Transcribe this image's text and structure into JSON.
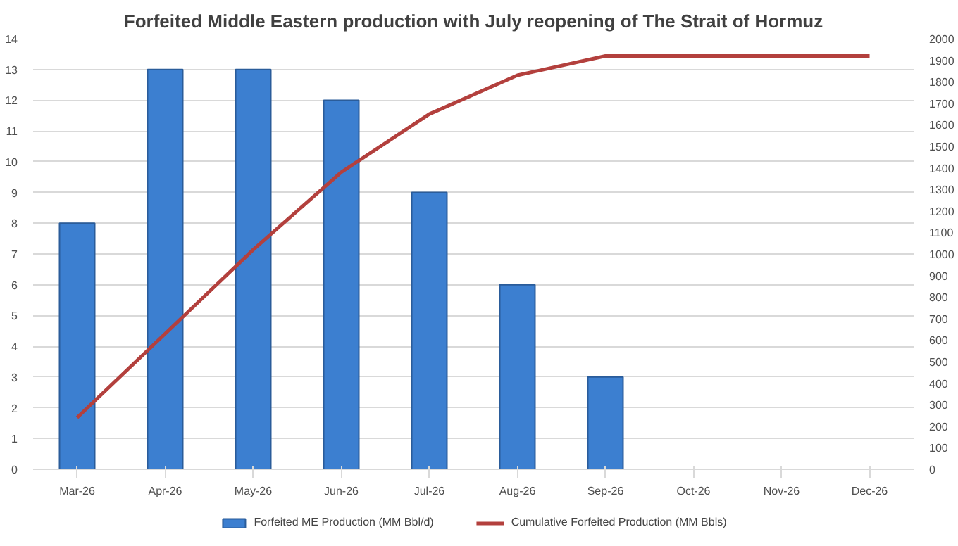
{
  "chart_data": {
    "type": "bar",
    "title": "Forfeited Middle Eastern production with July reopening of The Strait of Hormuz",
    "categories": [
      "Mar-26",
      "Apr-26",
      "May-26",
      "Jun-26",
      "Jul-26",
      "Aug-26",
      "Sep-26",
      "Oct-26",
      "Nov-26",
      "Dec-26"
    ],
    "series": [
      {
        "name": "Forfeited ME Production (MM Bbl/d)",
        "color": "#3c7fd0",
        "values": [
          8,
          13,
          13,
          12,
          9,
          6,
          3,
          null,
          null,
          null
        ]
      },
      {
        "name": "Cumulative Forfeited Production (MM Bbls)",
        "type": "line",
        "axis": "y2",
        "color": "#b3403d",
        "values": [
          240,
          630,
          1020,
          1380,
          1650,
          1830,
          1920,
          1920,
          1920,
          1920
        ]
      }
    ],
    "ylim": [
      0,
      14
    ],
    "yticks": [
      0,
      1,
      2,
      3,
      4,
      5,
      6,
      7,
      8,
      9,
      10,
      11,
      12,
      13,
      14
    ],
    "y2lim": [
      0,
      2000
    ],
    "y2ticks": [
      0,
      100,
      200,
      300,
      400,
      500,
      600,
      700,
      800,
      900,
      1000,
      1100,
      1200,
      1300,
      1400,
      1500,
      1600,
      1700,
      1800,
      1900,
      2000
    ],
    "grid": "y",
    "legend": "bottom"
  }
}
